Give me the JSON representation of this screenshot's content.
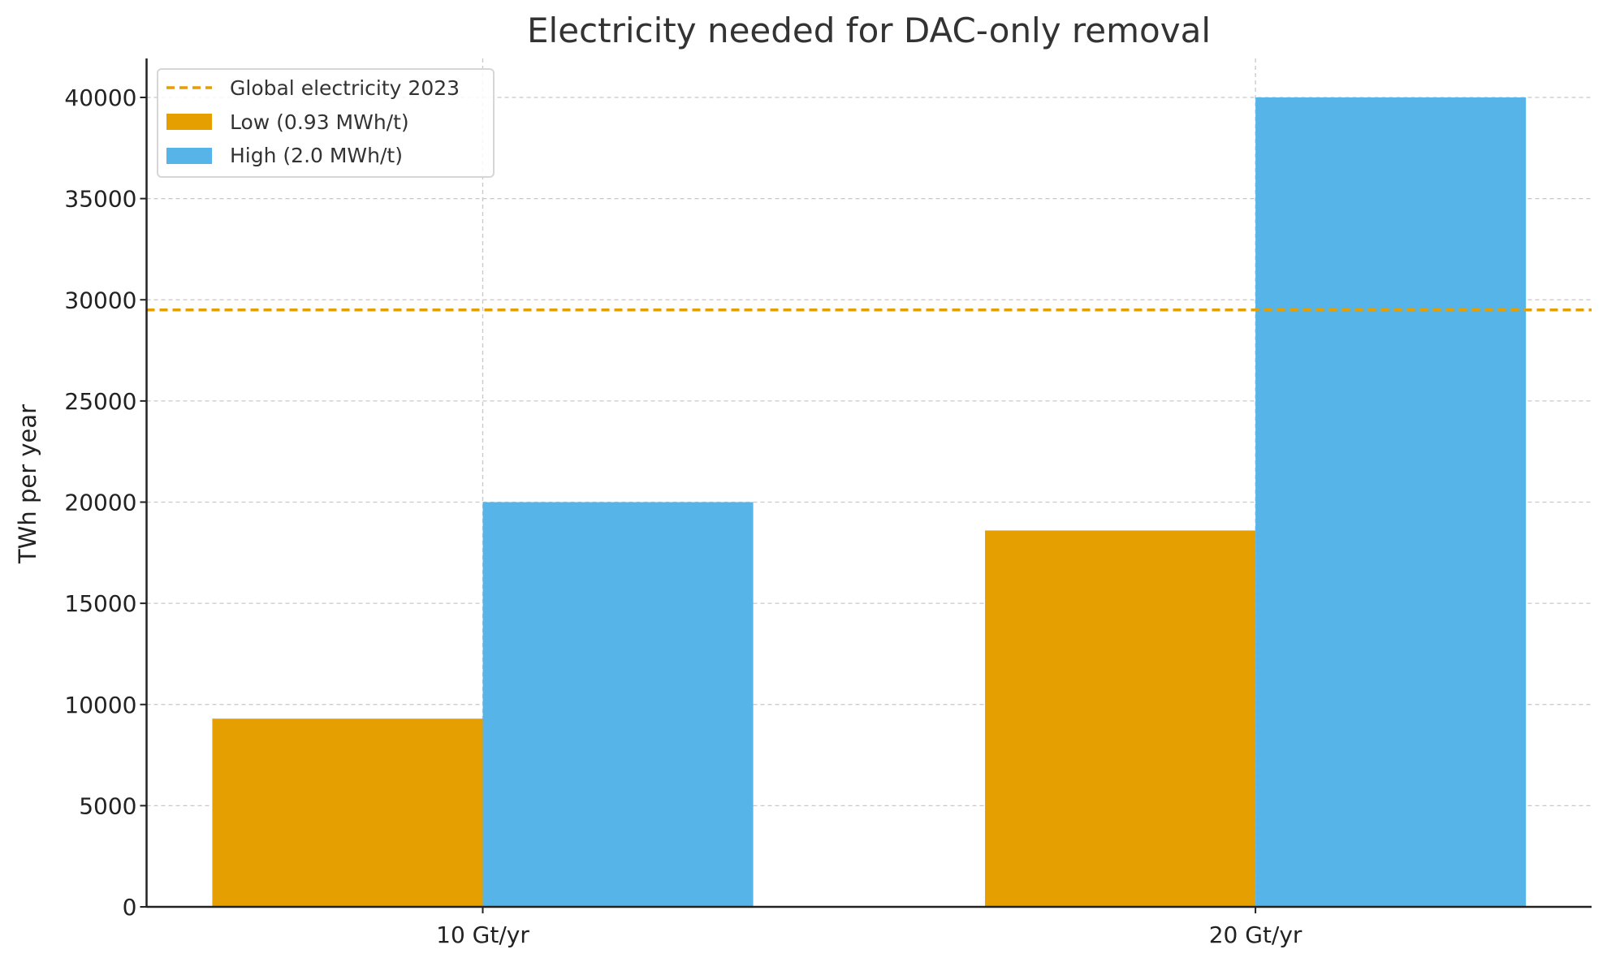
{
  "chart_data": {
    "type": "bar",
    "title": "Electricity needed for DAC-only removal",
    "xlabel": "",
    "ylabel": "TWh per year",
    "categories": [
      "10 Gt/yr",
      "20 Gt/yr"
    ],
    "series": [
      {
        "name": "Low (0.93 MWh/t)",
        "values": [
          9300,
          18600
        ],
        "color": "#E69F00"
      },
      {
        "name": "High (2.0 MWh/t)",
        "values": [
          20000,
          40000
        ],
        "color": "#56B4E9"
      }
    ],
    "reference_line": {
      "name": "Global electricity 2023",
      "value": 29500,
      "color": "#E69F00",
      "style": "dashed"
    },
    "ylim": [
      0,
      42000
    ],
    "yticks": [
      0,
      5000,
      10000,
      15000,
      20000,
      25000,
      30000,
      35000,
      40000
    ],
    "grid": true,
    "legend": "top-left"
  }
}
